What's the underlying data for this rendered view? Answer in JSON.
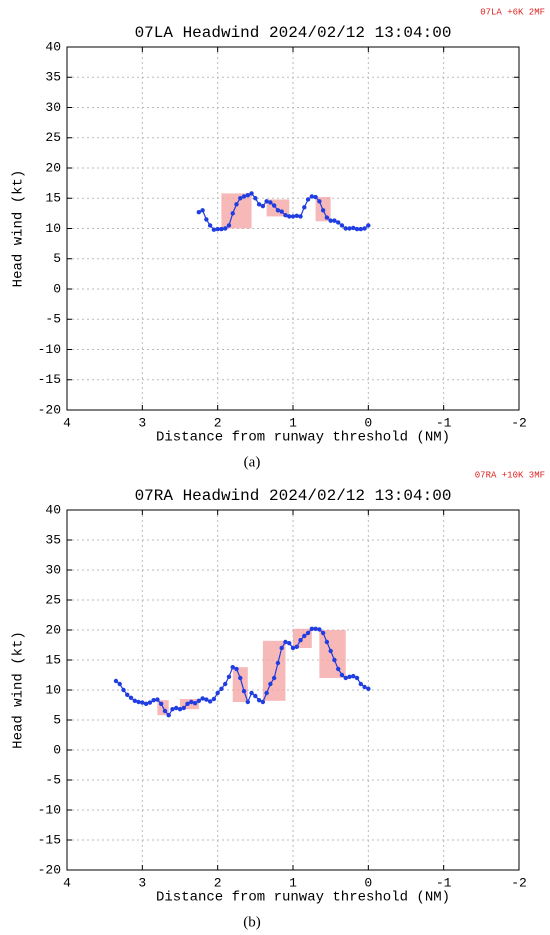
{
  "chart_data": [
    {
      "type": "line",
      "title": "07LA Headwind 2024/02/12 13:04:00",
      "note": "07LA +6K 2MF",
      "caption": "(a)",
      "xlabel": "Distance from runway threshold (NM)",
      "ylabel": "Head wind (kt)",
      "xlim": [
        4,
        -2
      ],
      "ylim": [
        -20,
        40
      ],
      "xticks": [
        4,
        3,
        2,
        1,
        0,
        -1,
        -2
      ],
      "yticks": [
        -20,
        -15,
        -10,
        -5,
        0,
        5,
        10,
        15,
        20,
        25,
        30,
        35,
        40
      ],
      "grid": true,
      "color": "#1f3de0",
      "region_color": "#f4a0a0",
      "x": [
        2.25,
        2.2,
        2.15,
        2.1,
        2.05,
        2.0,
        1.95,
        1.9,
        1.85,
        1.8,
        1.75,
        1.7,
        1.65,
        1.6,
        1.55,
        1.5,
        1.45,
        1.4,
        1.35,
        1.3,
        1.25,
        1.2,
        1.15,
        1.1,
        1.05,
        1.0,
        0.95,
        0.9,
        0.85,
        0.8,
        0.75,
        0.7,
        0.65,
        0.6,
        0.55,
        0.5,
        0.45,
        0.4,
        0.35,
        0.3,
        0.25,
        0.2,
        0.15,
        0.1,
        0.05,
        0.0
      ],
      "values": [
        12.7,
        13,
        11.5,
        10.5,
        9.8,
        9.9,
        9.9,
        10,
        10.5,
        12.5,
        14,
        15,
        15.3,
        15.5,
        15.8,
        15,
        14,
        13.7,
        14.5,
        14.3,
        13.8,
        13,
        12.8,
        12.2,
        12,
        12,
        12.1,
        12,
        13.5,
        14.8,
        15.3,
        15.2,
        14.5,
        13,
        11.8,
        11.3,
        11.3,
        11,
        10.5,
        10,
        10,
        10.1,
        9.9,
        9.9,
        10,
        10.5
      ],
      "regions": [
        {
          "x": [
            1.95,
            1.55
          ],
          "y": [
            10,
            15.8
          ]
        },
        {
          "x": [
            1.35,
            1.05
          ],
          "y": [
            12,
            14.8
          ]
        },
        {
          "x": [
            0.7,
            0.5
          ],
          "y": [
            11.2,
            15.2
          ]
        }
      ]
    },
    {
      "type": "line",
      "title": "07RA Headwind 2024/02/12 13:04:00",
      "note": "07RA +10K 3MF",
      "caption": "(b)",
      "xlabel": "Distance from runway threshold (NM)",
      "ylabel": "Head wind (kt)",
      "xlim": [
        4,
        -2
      ],
      "ylim": [
        -20,
        40
      ],
      "xticks": [
        4,
        3,
        2,
        1,
        0,
        -1,
        -2
      ],
      "yticks": [
        -20,
        -15,
        -10,
        -5,
        0,
        5,
        10,
        15,
        20,
        25,
        30,
        35,
        40
      ],
      "grid": true,
      "color": "#1f3de0",
      "region_color": "#f4a0a0",
      "x": [
        3.35,
        3.3,
        3.25,
        3.2,
        3.15,
        3.1,
        3.05,
        3.0,
        2.95,
        2.9,
        2.85,
        2.8,
        2.75,
        2.7,
        2.65,
        2.6,
        2.55,
        2.5,
        2.45,
        2.4,
        2.35,
        2.3,
        2.25,
        2.2,
        2.15,
        2.1,
        2.05,
        2.0,
        1.95,
        1.9,
        1.85,
        1.8,
        1.75,
        1.7,
        1.65,
        1.6,
        1.55,
        1.5,
        1.45,
        1.4,
        1.35,
        1.3,
        1.25,
        1.2,
        1.15,
        1.1,
        1.05,
        1.0,
        0.95,
        0.9,
        0.85,
        0.8,
        0.75,
        0.7,
        0.65,
        0.6,
        0.55,
        0.5,
        0.45,
        0.4,
        0.35,
        0.3,
        0.25,
        0.2,
        0.15,
        0.1,
        0.05,
        0.0
      ],
      "values": [
        11.5,
        11,
        10,
        9.2,
        8.7,
        8.2,
        8,
        7.9,
        7.7,
        7.9,
        8.3,
        8.4,
        7.7,
        6.5,
        5.8,
        6.8,
        7,
        6.8,
        7,
        7.7,
        8,
        7.8,
        8.2,
        8.6,
        8.4,
        8.1,
        8.5,
        9.5,
        10.2,
        11,
        12.2,
        13.8,
        13.5,
        12,
        9.8,
        8,
        9.5,
        9,
        8.3,
        8,
        9.5,
        11,
        12,
        14.5,
        17,
        18,
        17.8,
        17,
        17.2,
        18.3,
        19,
        19.5,
        20.2,
        20.2,
        20.1,
        19.5,
        18,
        16.5,
        15,
        13.5,
        12.5,
        12,
        12.2,
        12.3,
        12,
        11,
        10.5,
        10.2
      ],
      "regions": [
        {
          "x": [
            2.8,
            2.65
          ],
          "y": [
            5.8,
            8.3
          ]
        },
        {
          "x": [
            2.5,
            2.25
          ],
          "y": [
            6.8,
            8.5
          ]
        },
        {
          "x": [
            1.8,
            1.6
          ],
          "y": [
            8,
            13.8
          ]
        },
        {
          "x": [
            1.4,
            1.1
          ],
          "y": [
            8.2,
            18.2
          ]
        },
        {
          "x": [
            1.0,
            0.75
          ],
          "y": [
            17,
            20.2
          ]
        },
        {
          "x": [
            0.65,
            0.3
          ],
          "y": [
            12,
            20
          ]
        }
      ]
    }
  ]
}
